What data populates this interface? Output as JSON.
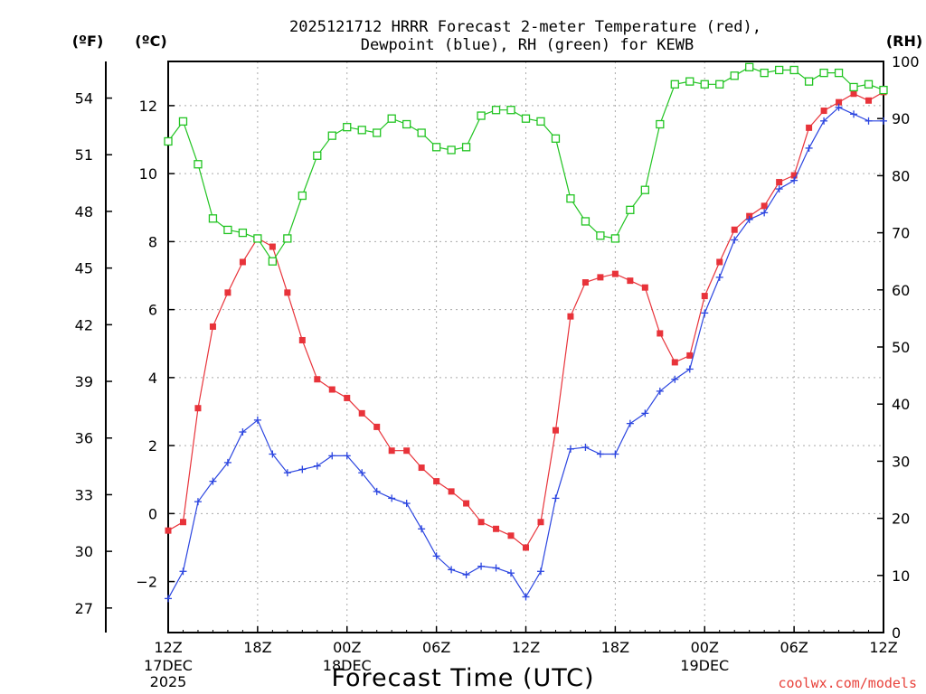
{
  "chart_data": {
    "type": "line",
    "title_line1": "2025121712 HRRR Forecast 2-meter Temperature (red),",
    "title_line2": "Dewpoint (blue), RH (green) for KEWB",
    "unit_f": "(ºF)",
    "unit_c": "(ºC)",
    "unit_rh": "(RH)",
    "xlabel": "Forecast Time (UTC)",
    "credit": "coolwx.com/models",
    "x_hours": [
      0,
      1,
      2,
      3,
      4,
      5,
      6,
      7,
      8,
      9,
      10,
      11,
      12,
      13,
      14,
      15,
      16,
      17,
      18,
      19,
      20,
      21,
      22,
      23,
      24,
      25,
      26,
      27,
      28,
      29,
      30,
      31,
      32,
      33,
      34,
      35,
      36,
      37,
      38,
      39,
      40,
      41,
      42,
      43,
      44,
      45,
      46,
      47,
      48
    ],
    "x_ticks": [
      {
        "hour": 0,
        "label": "12Z",
        "date": "17DEC",
        "year": "2025"
      },
      {
        "hour": 6,
        "label": "18Z",
        "date": "",
        "year": ""
      },
      {
        "hour": 12,
        "label": "00Z",
        "date": "18DEC",
        "year": ""
      },
      {
        "hour": 18,
        "label": "06Z",
        "date": "",
        "year": ""
      },
      {
        "hour": 24,
        "label": "12Z",
        "date": "",
        "year": ""
      },
      {
        "hour": 30,
        "label": "18Z",
        "date": "",
        "year": ""
      },
      {
        "hour": 36,
        "label": "00Z",
        "date": "19DEC",
        "year": ""
      },
      {
        "hour": 42,
        "label": "06Z",
        "date": "",
        "year": ""
      },
      {
        "hour": 48,
        "label": "12Z",
        "date": "",
        "year": ""
      }
    ],
    "xlim": [
      0,
      48
    ],
    "ylim_c": [
      -3.5,
      13.3
    ],
    "ylim_rh": [
      0,
      100
    ],
    "celsius_ticks": [
      -2,
      0,
      2,
      4,
      6,
      8,
      10,
      12
    ],
    "celsius_tick_labels": [
      "−2",
      "0",
      "2",
      "4",
      "6",
      "8",
      "10",
      "12"
    ],
    "fahrenheit_ticks": [
      27,
      30,
      33,
      36,
      39,
      42,
      45,
      48,
      51,
      54
    ],
    "fahrenheit_tick_labels": [
      "27",
      "30",
      "33",
      "36",
      "39",
      "42",
      "45",
      "48",
      "51",
      "54"
    ],
    "rh_ticks": [
      0,
      10,
      20,
      30,
      40,
      50,
      60,
      70,
      80,
      90,
      100
    ],
    "rh_tick_labels": [
      "0",
      "10",
      "20",
      "30",
      "40",
      "50",
      "60",
      "70",
      "80",
      "90",
      "100"
    ],
    "grid": true,
    "series": [
      {
        "name": "2-meter Temperature",
        "unit": "C",
        "color": "#e8333a",
        "marker": "filled-square",
        "values": [
          -0.5,
          -0.25,
          3.1,
          5.5,
          6.5,
          7.4,
          8.1,
          7.85,
          6.5,
          5.1,
          3.95,
          3.65,
          3.4,
          2.95,
          2.55,
          1.85,
          1.85,
          1.35,
          0.95,
          0.65,
          0.3,
          -0.25,
          -0.45,
          -0.65,
          -1.0,
          -0.25,
          2.45,
          5.8,
          6.8,
          6.95,
          7.05,
          6.85,
          6.65,
          5.3,
          4.45,
          4.65,
          6.4,
          7.4,
          8.35,
          8.75,
          9.05,
          9.75,
          9.95,
          11.35,
          11.85,
          12.1,
          12.35,
          12.15,
          12.4
        ]
      },
      {
        "name": "Dewpoint",
        "unit": "C",
        "color": "#2b45e0",
        "marker": "plus",
        "values": [
          -2.5,
          -1.7,
          0.35,
          0.95,
          1.5,
          2.4,
          2.75,
          1.75,
          1.2,
          1.3,
          1.4,
          1.7,
          1.7,
          1.2,
          0.65,
          0.45,
          0.3,
          -0.45,
          -1.25,
          -1.65,
          -1.8,
          -1.55,
          -1.6,
          -1.75,
          -2.45,
          -1.7,
          0.45,
          1.9,
          1.95,
          1.75,
          1.75,
          2.65,
          2.95,
          3.6,
          3.95,
          4.25,
          5.9,
          6.95,
          8.05,
          8.65,
          8.85,
          9.55,
          9.8,
          10.75,
          11.55,
          11.95,
          11.75,
          11.55,
          11.55
        ]
      },
      {
        "name": "RH",
        "unit": "%",
        "color": "#22c422",
        "marker": "open-square",
        "values": [
          86,
          89.5,
          82,
          72.5,
          70.5,
          70,
          69,
          65,
          69,
          76.5,
          83.5,
          87,
          88.5,
          88,
          87.5,
          90,
          89,
          87.5,
          85,
          84.5,
          85,
          90.5,
          91.5,
          91.5,
          90,
          89.5,
          86.5,
          76,
          72,
          69.5,
          69,
          74,
          77.5,
          89,
          96,
          96.5,
          96,
          96,
          97.5,
          99,
          98,
          98.5,
          98.5,
          96.5,
          98,
          98,
          95.5,
          96,
          95
        ]
      }
    ]
  }
}
